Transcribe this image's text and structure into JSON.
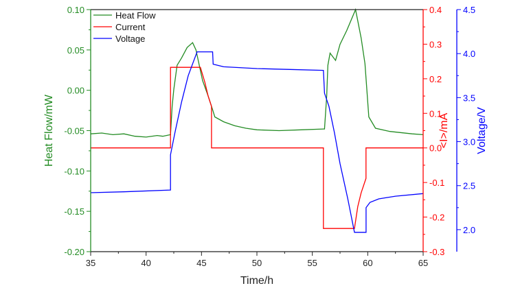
{
  "chart_data": {
    "type": "line",
    "xlabel": "Time/h",
    "xlim": [
      35,
      65
    ],
    "xticks": [
      "35",
      "40",
      "45",
      "50",
      "55",
      "60",
      "65"
    ],
    "axes": [
      {
        "id": "heat",
        "label": "Heat Flow/mW",
        "color": "#228b22",
        "side": "left",
        "ylim": [
          -0.2,
          0.1
        ],
        "ticks": [
          "-0.20",
          "-0.15",
          "-0.10",
          "-0.05",
          "0.00",
          "0.05",
          "0.10"
        ]
      },
      {
        "id": "current",
        "label": "<I>/mA",
        "color": "#ff0000",
        "side": "right",
        "ylim": [
          -0.3,
          0.4
        ],
        "ticks": [
          "-0.3",
          "-0.2",
          "-0.1",
          "0.0",
          "0.1",
          "0.2",
          "0.3",
          "0.4"
        ]
      },
      {
        "id": "voltage",
        "label": "Voltage/V",
        "color": "#0000ff",
        "side": "right-offset",
        "ylim": [
          1.75,
          4.5
        ],
        "ticks": [
          "2.0",
          "2.5",
          "3.0",
          "3.5",
          "4.0",
          "4.5"
        ]
      }
    ],
    "legend": {
      "position": "top-left"
    },
    "series": [
      {
        "name": "Heat Flow",
        "axis": "heat",
        "color": "#228b22",
        "x": [
          35,
          36,
          37,
          38,
          39,
          40,
          41,
          41.5,
          42.2,
          42.35,
          42.5,
          42.8,
          43.2,
          43.7,
          44.2,
          44.5,
          44.8,
          45.1,
          45.6,
          46,
          46.2,
          47,
          48,
          49,
          50,
          52,
          54,
          56,
          56.1,
          56.3,
          56.4,
          56.6,
          57.1,
          57.5,
          58.1,
          58.9,
          59.4,
          59.75,
          60.1,
          60.7,
          62,
          64,
          65
        ],
        "y": [
          -0.054,
          -0.053,
          -0.055,
          -0.054,
          -0.057,
          -0.058,
          -0.056,
          -0.057,
          -0.055,
          -0.02,
          0.001,
          0.031,
          0.04,
          0.053,
          0.059,
          0.05,
          0.031,
          0.012,
          -0.007,
          -0.024,
          -0.033,
          -0.039,
          -0.044,
          -0.047,
          -0.049,
          -0.05,
          -0.049,
          -0.048,
          -0.048,
          -0.007,
          0.031,
          0.046,
          0.037,
          0.057,
          0.074,
          0.1,
          0.065,
          0.033,
          -0.033,
          -0.047,
          -0.051,
          -0.054,
          -0.055
        ]
      },
      {
        "name": "Current",
        "axis": "current",
        "color": "#ff0000",
        "x": [
          35,
          42.2,
          42.2,
          44.9,
          45.3,
          45.6,
          45.9,
          45.9,
          56.0,
          56.0,
          58.8,
          59.1,
          59.4,
          59.84,
          59.84,
          65
        ],
        "y": [
          0,
          0,
          0.233,
          0.233,
          0.19,
          0.15,
          0.12,
          0,
          0,
          -0.233,
          -0.233,
          -0.17,
          -0.13,
          -0.088,
          0,
          0
        ]
      },
      {
        "name": "Voltage",
        "axis": "voltage",
        "color": "#0000ff",
        "x": [
          35,
          38,
          42.2,
          42.2,
          42.6,
          43.2,
          43.8,
          44.6,
          46,
          46.05,
          47,
          50,
          53,
          56,
          56.1,
          56.5,
          57,
          57.5,
          58.2,
          58.8,
          59.85,
          59.85,
          60.2,
          61,
          62.5,
          65
        ],
        "y": [
          2.42,
          2.43,
          2.45,
          2.85,
          3.1,
          3.45,
          3.75,
          4.02,
          4.02,
          3.88,
          3.85,
          3.83,
          3.82,
          3.81,
          3.55,
          3.4,
          3.1,
          2.75,
          2.35,
          1.97,
          1.97,
          2.25,
          2.31,
          2.35,
          2.38,
          2.41
        ]
      }
    ]
  }
}
